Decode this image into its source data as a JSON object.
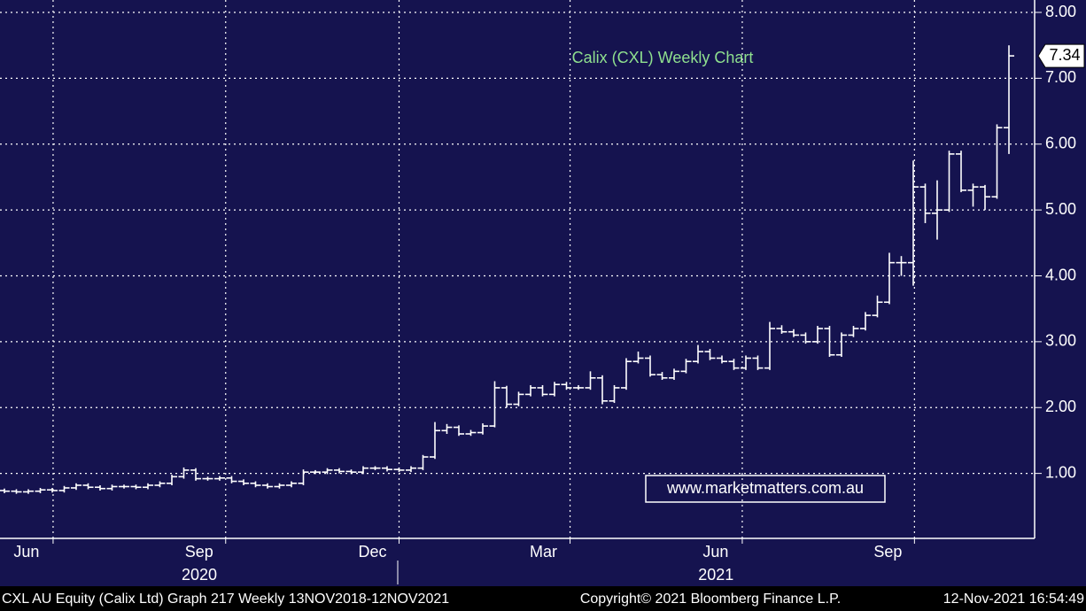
{
  "chart_data": {
    "type": "ohlc",
    "title": "Calix (CXL) Weekly Chart",
    "annotation": "www.marketmatters.com.au",
    "footer": {
      "left": "CXL AU Equity (Calix Ltd) Graph 217  Weekly 13NOV2018-12NOV2021",
      "center": "Copyright© 2021 Bloomberg Finance L.P.",
      "right": "12-Nov-2021 16:54:49"
    },
    "categories": [
      null,
      null,
      null,
      null,
      null,
      null,
      null,
      null,
      null,
      null,
      null,
      null,
      null,
      null,
      null,
      null,
      null,
      null,
      null,
      null,
      null,
      null,
      null,
      null,
      null,
      null,
      null,
      null,
      null,
      null,
      null,
      null,
      null,
      null,
      null,
      null,
      null,
      null,
      null,
      null,
      null,
      null,
      null,
      null,
      null,
      null,
      null,
      null,
      null,
      null,
      null,
      null,
      null,
      null,
      null,
      null,
      null,
      null,
      null,
      null,
      null,
      null,
      null,
      null,
      null,
      null,
      null,
      null,
      null,
      null,
      null,
      null,
      null,
      null,
      null,
      null,
      null,
      null,
      null,
      null,
      null,
      null,
      null,
      null,
      null
    ],
    "series": [
      {
        "color": "#ffffff",
        "open": [
          0.74,
          0.73,
          0.72,
          0.73,
          0.75,
          0.74,
          0.78,
          0.82,
          0.79,
          0.77,
          0.8,
          0.8,
          0.79,
          0.82,
          0.85,
          0.95,
          1.05,
          0.92,
          0.92,
          0.93,
          0.88,
          0.85,
          0.82,
          0.8,
          0.82,
          0.85,
          1.02,
          1.02,
          1.05,
          1.03,
          1.02,
          1.08,
          1.08,
          1.06,
          1.05,
          1.08,
          1.25,
          1.65,
          1.7,
          1.6,
          1.62,
          1.72,
          2.3,
          2.05,
          2.2,
          2.3,
          2.2,
          2.35,
          2.3,
          2.3,
          2.45,
          2.1,
          2.3,
          2.7,
          2.75,
          2.5,
          2.45,
          2.55,
          2.7,
          2.85,
          2.75,
          2.7,
          2.6,
          2.75,
          2.6,
          3.2,
          3.15,
          3.1,
          3.0,
          3.2,
          2.8,
          3.1,
          3.2,
          3.4,
          3.6,
          4.2,
          4.2,
          5.35,
          4.95,
          5.0,
          5.85,
          5.3,
          5.35,
          5.2,
          6.25
        ],
        "high": [
          0.77,
          0.76,
          0.76,
          0.78,
          0.78,
          0.81,
          0.85,
          0.85,
          0.82,
          0.83,
          0.83,
          0.83,
          0.85,
          0.88,
          0.98,
          1.09,
          1.08,
          0.95,
          0.96,
          0.96,
          0.91,
          0.88,
          0.85,
          0.85,
          0.88,
          1.06,
          1.05,
          1.08,
          1.08,
          1.06,
          1.11,
          1.11,
          1.11,
          1.09,
          1.11,
          1.28,
          1.78,
          1.75,
          1.73,
          1.66,
          1.76,
          2.4,
          2.33,
          2.24,
          2.34,
          2.34,
          2.39,
          2.39,
          2.34,
          2.55,
          2.49,
          2.34,
          2.75,
          2.85,
          2.79,
          2.54,
          2.59,
          2.74,
          2.95,
          2.89,
          2.79,
          2.74,
          2.79,
          2.79,
          3.3,
          3.25,
          3.19,
          3.14,
          3.24,
          3.24,
          3.14,
          3.24,
          3.45,
          3.7,
          4.35,
          4.3,
          5.75,
          5.4,
          5.45,
          5.9,
          5.9,
          5.4,
          5.38,
          6.3,
          7.5
        ],
        "low": [
          0.7,
          0.69,
          0.69,
          0.7,
          0.71,
          0.71,
          0.75,
          0.76,
          0.74,
          0.74,
          0.77,
          0.76,
          0.76,
          0.79,
          0.82,
          0.92,
          0.89,
          0.89,
          0.89,
          0.85,
          0.82,
          0.79,
          0.77,
          0.77,
          0.79,
          0.82,
          0.99,
          0.99,
          1.0,
          0.99,
          0.99,
          1.05,
          1.03,
          1.02,
          1.02,
          1.05,
          1.22,
          1.6,
          1.57,
          1.57,
          1.59,
          1.7,
          2.0,
          2.02,
          2.17,
          2.17,
          2.17,
          2.27,
          2.27,
          2.27,
          2.05,
          2.07,
          2.27,
          2.67,
          2.47,
          2.42,
          2.42,
          2.52,
          2.67,
          2.72,
          2.67,
          2.57,
          2.57,
          2.57,
          2.57,
          3.12,
          3.07,
          2.97,
          2.97,
          2.77,
          2.77,
          3.07,
          3.17,
          3.37,
          3.57,
          4.0,
          3.85,
          4.8,
          4.55,
          4.97,
          5.27,
          5.05,
          5.0,
          5.17,
          5.85
        ],
        "close": [
          0.73,
          0.72,
          0.73,
          0.75,
          0.74,
          0.78,
          0.82,
          0.79,
          0.77,
          0.8,
          0.8,
          0.79,
          0.82,
          0.85,
          0.95,
          1.05,
          0.92,
          0.92,
          0.93,
          0.88,
          0.85,
          0.82,
          0.8,
          0.82,
          0.85,
          1.02,
          1.02,
          1.05,
          1.03,
          1.02,
          1.08,
          1.08,
          1.06,
          1.05,
          1.08,
          1.25,
          1.65,
          1.7,
          1.6,
          1.62,
          1.72,
          2.3,
          2.05,
          2.2,
          2.3,
          2.2,
          2.35,
          2.3,
          2.3,
          2.45,
          2.1,
          2.3,
          2.7,
          2.75,
          2.5,
          2.45,
          2.55,
          2.7,
          2.85,
          2.75,
          2.7,
          2.6,
          2.75,
          2.6,
          3.2,
          3.15,
          3.1,
          3.0,
          3.2,
          2.8,
          3.1,
          3.2,
          3.4,
          3.6,
          4.2,
          4.2,
          5.35,
          4.95,
          5.0,
          5.85,
          5.3,
          5.35,
          5.2,
          6.25,
          7.34
        ]
      }
    ],
    "ylim": [
      0,
      8
    ],
    "yticks": [
      {
        "value": 1,
        "label": "1.00"
      },
      {
        "value": 2,
        "label": "2.00"
      },
      {
        "value": 3,
        "label": "3.00"
      },
      {
        "value": 4,
        "label": "4.00"
      },
      {
        "value": 5,
        "label": "5.00"
      },
      {
        "value": 6,
        "label": "6.00"
      },
      {
        "value": 7,
        "label": "7.00"
      },
      {
        "value": 8,
        "label": "8.00"
      }
    ],
    "xticks": [
      {
        "value": 4.07,
        "label": "Jun"
      },
      {
        "value": 18.5,
        "label": "Sep"
      },
      {
        "value": 33,
        "label": "Dec"
      },
      {
        "value": 47.3,
        "label": "Mar"
      },
      {
        "value": 61.7,
        "label": "Jun"
      },
      {
        "value": 76.1,
        "label": "Sep"
      }
    ],
    "year_ticks": [
      {
        "value": 16.3,
        "label": "2020"
      },
      {
        "value": 59.5,
        "label": "2021"
      }
    ],
    "grid": true,
    "title_color": "#8fe08f",
    "background": "#15134f"
  }
}
